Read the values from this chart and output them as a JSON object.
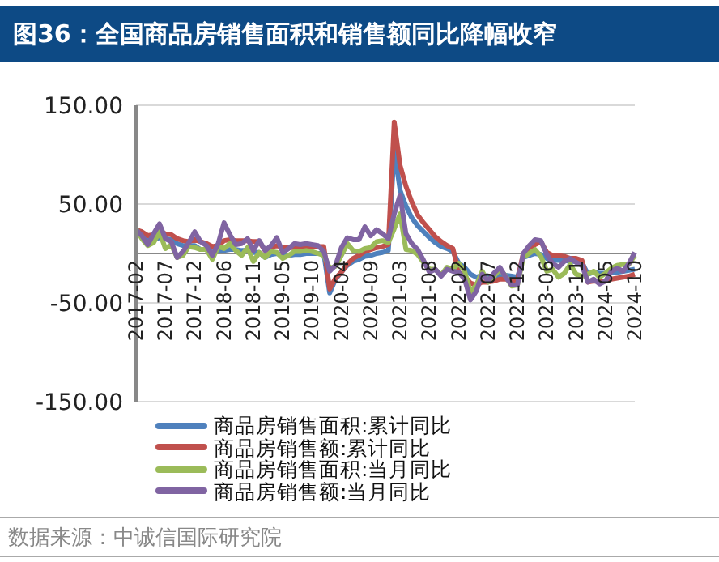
{
  "chart_data": {
    "type": "line",
    "title": "图36：全国商品房销售面积和销售额同比降幅收窄",
    "categories": [
      "2017-02",
      null,
      null,
      null,
      null,
      "2017-07",
      null,
      null,
      null,
      null,
      "2017-12",
      null,
      null,
      null,
      null,
      "2018-06",
      null,
      null,
      null,
      null,
      "2018-11",
      null,
      null,
      null,
      null,
      "2019-05",
      null,
      null,
      null,
      null,
      "2019-10",
      null,
      null,
      null,
      null,
      "2020-04",
      null,
      null,
      null,
      null,
      "2020-09",
      null,
      null,
      null,
      null,
      "2021-03",
      null,
      null,
      null,
      null,
      "2021-08",
      null,
      null,
      null,
      null,
      "2022-02",
      null,
      null,
      null,
      null,
      "2022-07",
      null,
      null,
      null,
      null,
      "2022-12",
      null,
      null,
      null,
      null,
      "2023-06",
      null,
      null,
      null,
      null,
      "2023-11",
      null,
      null,
      null,
      null,
      "2024-05",
      null,
      null,
      null,
      null,
      "2024-10"
    ],
    "series": [
      {
        "name": "商品房销售面积:累计同比",
        "color": "#4f81bd",
        "values": [
          25,
          20,
          16,
          14,
          16,
          15,
          14,
          10,
          8,
          8,
          8,
          4,
          4,
          1,
          3,
          3,
          4,
          4,
          3,
          3,
          1,
          1,
          -4,
          -1,
          0,
          -2,
          -2,
          -1,
          -1,
          0,
          0,
          0,
          0,
          -40,
          -26,
          -19,
          -12,
          -8,
          -6,
          -3,
          -2,
          0,
          1,
          3,
          105,
          64,
          48,
          36,
          28,
          22,
          16,
          11,
          7,
          5,
          2,
          -10,
          -14,
          -21,
          -24,
          -22,
          -23,
          -23,
          -22,
          -22,
          -23,
          -24,
          -4,
          -2,
          0,
          -1,
          -5,
          -7,
          -7,
          -7,
          -8,
          -8,
          -9,
          -21,
          -19,
          -20,
          -20,
          -19,
          -19,
          -18,
          -17,
          -16
        ]
      },
      {
        "name": "商品房销售额:累计同比",
        "color": "#c0504d",
        "values": [
          24,
          22,
          18,
          19,
          22,
          20,
          19,
          15,
          13,
          12,
          14,
          12,
          10,
          7,
          8,
          13,
          14,
          13,
          13,
          13,
          12,
          12,
          3,
          6,
          8,
          6,
          6,
          6,
          7,
          7,
          7,
          7,
          7,
          -36,
          -25,
          -19,
          -11,
          -5,
          -2,
          2,
          4,
          6,
          7,
          9,
          133,
          89,
          68,
          52,
          39,
          31,
          24,
          17,
          12,
          8,
          5,
          -19,
          -23,
          -30,
          -32,
          -29,
          -29,
          -28,
          -26,
          -26,
          -27,
          -27,
          0,
          4,
          9,
          12,
          1,
          -2,
          -2,
          -3,
          -5,
          -5,
          -7,
          -29,
          -28,
          -28,
          -28,
          -26,
          -25,
          -24,
          -23,
          -21
        ]
      },
      {
        "name": "商品房销售面积:当月同比",
        "color": "#9bbb59",
        "values": [
          25,
          15,
          8,
          11,
          22,
          5,
          9,
          -4,
          -2,
          7,
          6,
          4,
          4,
          -6,
          7,
          5,
          10,
          3,
          -2,
          6,
          -8,
          1,
          -4,
          2,
          1,
          -5,
          -2,
          2,
          2,
          3,
          2,
          0,
          -2,
          -15,
          -13,
          -2,
          10,
          3,
          2,
          5,
          6,
          12,
          13,
          11,
          25,
          40,
          4,
          3,
          -1,
          -9,
          -16,
          -16,
          -22,
          -14,
          -16,
          -10,
          -18,
          -39,
          -32,
          -18,
          -29,
          -23,
          -16,
          -23,
          -33,
          -32,
          -4,
          0,
          4,
          -3,
          -18,
          -16,
          -24,
          -20,
          -11,
          -21,
          -23,
          -21,
          -18,
          -24,
          -20,
          -15,
          -12,
          -11,
          -11,
          -2
        ]
      },
      {
        "name": "商品房销售额:当月同比",
        "color": "#8064a2",
        "values": [
          24,
          18,
          9,
          20,
          30,
          15,
          12,
          -4,
          2,
          11,
          22,
          12,
          8,
          -2,
          10,
          31,
          19,
          9,
          10,
          15,
          3,
          13,
          3,
          8,
          16,
          1,
          5,
          10,
          9,
          10,
          9,
          8,
          2,
          -18,
          -12,
          6,
          16,
          14,
          14,
          27,
          18,
          24,
          20,
          15,
          40,
          59,
          20,
          10,
          4,
          -7,
          -19,
          -16,
          -23,
          -16,
          -18,
          -19,
          -26,
          -47,
          -38,
          -21,
          -28,
          -20,
          -14,
          -24,
          -32,
          -32,
          0,
          8,
          14,
          13,
          -1,
          -10,
          -14,
          -8,
          -5,
          -9,
          -12,
          -29,
          -26,
          -31,
          -28,
          -18,
          -15,
          -18,
          -10,
          1
        ]
      }
    ],
    "ylim": [
      -150,
      150
    ],
    "yticks": [
      {
        "value": -150,
        "label": "-150.00"
      },
      {
        "value": -50,
        "label": "-50.00"
      },
      {
        "value": 50,
        "label": "50.00"
      },
      {
        "value": 150,
        "label": "150.00"
      }
    ],
    "grid": "y",
    "legend": "bottom",
    "marker": "none",
    "annotations": [
      "数据来源：中诚信国际研究院"
    ]
  }
}
